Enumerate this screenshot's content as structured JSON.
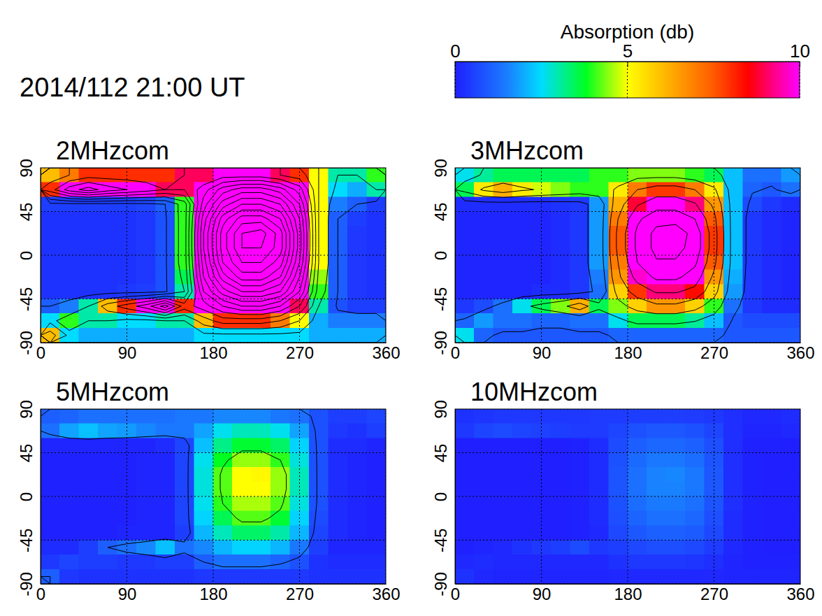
{
  "title": "2014/112 21:00 UT",
  "colorbar": {
    "label": "Absorption (db)",
    "range": [
      0,
      10
    ],
    "ticks": [
      0,
      5,
      10
    ]
  },
  "chart_data": [
    {
      "type": "heatmap",
      "title": "2MHzcom",
      "x": [
        10,
        30,
        50,
        70,
        90,
        110,
        130,
        150,
        170,
        190,
        210,
        230,
        250,
        270,
        290,
        310,
        330,
        350
      ],
      "y": [
        82.5,
        67.5,
        52.5,
        37.5,
        22.5,
        7.5,
        -7.5,
        -22.5,
        -37.5,
        -52.5,
        -67.5,
        -82.5
      ],
      "values": [
        [
          6,
          7,
          8,
          8,
          8,
          8,
          8,
          9,
          9,
          10,
          10,
          10,
          9,
          8,
          5,
          3,
          3,
          4
        ],
        [
          8,
          12,
          14,
          12,
          11,
          10,
          9,
          9,
          12,
          16,
          18,
          18,
          16,
          12,
          5,
          2.5,
          2,
          3
        ],
        [
          0.5,
          0.5,
          0.5,
          0.5,
          0.5,
          0.6,
          1,
          4,
          14,
          20,
          23,
          23,
          21,
          15,
          5,
          1.5,
          1,
          0.5
        ],
        [
          0.3,
          0.3,
          0.3,
          0.3,
          0.3,
          0.4,
          0.8,
          4,
          16,
          24,
          28,
          28,
          25,
          17,
          5,
          1,
          0.5,
          0.3
        ],
        [
          0.3,
          0.3,
          0.3,
          0.3,
          0.3,
          0.4,
          0.8,
          4,
          17,
          26,
          31,
          32,
          28,
          18,
          5,
          1,
          0.4,
          0.3
        ],
        [
          0.3,
          0.3,
          0.3,
          0.3,
          0.3,
          0.4,
          0.8,
          4,
          17,
          26,
          31,
          31,
          28,
          18,
          5,
          1,
          0.4,
          0.3
        ],
        [
          0.3,
          0.3,
          0.3,
          0.3,
          0.3,
          0.4,
          0.8,
          4,
          16,
          25,
          29,
          29,
          26,
          17,
          5,
          1,
          0.4,
          0.3
        ],
        [
          0.3,
          0.3,
          0.3,
          0.3,
          0.3,
          0.4,
          0.8,
          3.5,
          15,
          22,
          26,
          26,
          23,
          15,
          4.5,
          1,
          0.4,
          0.3
        ],
        [
          0.3,
          0.3,
          0.3,
          0.3,
          0.4,
          0.5,
          0.8,
          3,
          13,
          18,
          21,
          21,
          19,
          13,
          4,
          1,
          0.4,
          0.3
        ],
        [
          1,
          1.5,
          3,
          6,
          8,
          10,
          14,
          8,
          10,
          13,
          15,
          15,
          13,
          9,
          3,
          0.8,
          0.5,
          0.5
        ],
        [
          2.5,
          4,
          3,
          3,
          2.5,
          2.5,
          3,
          3,
          6,
          8,
          8,
          8,
          7,
          5,
          2,
          1.5,
          1.5,
          1.5
        ],
        [
          6,
          2.5,
          2,
          2,
          2,
          2,
          2,
          2,
          2.5,
          2.5,
          2.5,
          2.5,
          2.5,
          2.5,
          2,
          2,
          2,
          2
        ]
      ],
      "contours": [
        1,
        3,
        5,
        7,
        9,
        11,
        13,
        15,
        17,
        19,
        21,
        23,
        25,
        27,
        29,
        31
      ],
      "xlim": [
        0,
        360
      ],
      "ylim": [
        -90,
        90
      ],
      "xticks": [
        0,
        90,
        180,
        270,
        360
      ],
      "yticks": [
        -90,
        -45,
        0,
        45,
        90
      ],
      "grid": true
    },
    {
      "type": "heatmap",
      "title": "3MHzcom",
      "x": [
        10,
        30,
        50,
        70,
        90,
        110,
        130,
        150,
        170,
        190,
        210,
        230,
        250,
        270,
        290,
        310,
        330,
        350
      ],
      "y": [
        82.5,
        67.5,
        52.5,
        37.5,
        22.5,
        7.5,
        -7.5,
        -22.5,
        -37.5,
        -52.5,
        -67.5,
        -82.5
      ],
      "values": [
        [
          2.6,
          3.1,
          3.5,
          3.5,
          3.5,
          3.5,
          3.5,
          4,
          4,
          4.4,
          4.4,
          4.4,
          4,
          3.5,
          2.2,
          1.3,
          1.3,
          1.8
        ],
        [
          3.5,
          5.3,
          6.2,
          5.3,
          4.8,
          4.4,
          4,
          4,
          5.3,
          7,
          7.9,
          7.9,
          7,
          5.3,
          2.2,
          1.1,
          0.9,
          1.3
        ],
        [
          0.2,
          0.2,
          0.2,
          0.2,
          0.2,
          0.3,
          0.4,
          1.8,
          6.2,
          8.8,
          10.1,
          10.1,
          9.2,
          6.6,
          2.2,
          0.7,
          0.4,
          0.2
        ],
        [
          0.1,
          0.1,
          0.1,
          0.1,
          0.1,
          0.2,
          0.4,
          1.8,
          7,
          10.6,
          12.3,
          12.3,
          11,
          7.5,
          2.2,
          0.4,
          0.2,
          0.1
        ],
        [
          0.1,
          0.1,
          0.1,
          0.1,
          0.1,
          0.2,
          0.4,
          1.8,
          7.5,
          11.4,
          13.6,
          14.1,
          12.3,
          7.9,
          2.2,
          0.4,
          0.2,
          0.1
        ],
        [
          0.1,
          0.1,
          0.1,
          0.1,
          0.1,
          0.2,
          0.4,
          1.8,
          7.5,
          11.4,
          13.6,
          13.6,
          12.3,
          7.9,
          2.2,
          0.4,
          0.2,
          0.1
        ],
        [
          0.1,
          0.1,
          0.1,
          0.1,
          0.1,
          0.2,
          0.4,
          1.8,
          7,
          11,
          12.8,
          12.8,
          11.4,
          7.5,
          2.2,
          0.4,
          0.2,
          0.1
        ],
        [
          0.1,
          0.1,
          0.1,
          0.1,
          0.1,
          0.2,
          0.4,
          1.5,
          6.6,
          9.7,
          11.4,
          11.4,
          10.1,
          6.6,
          2,
          0.4,
          0.2,
          0.1
        ],
        [
          0.1,
          0.1,
          0.1,
          0.1,
          0.2,
          0.2,
          0.4,
          1.3,
          5.7,
          7.9,
          9.2,
          9.2,
          8.4,
          5.7,
          1.8,
          0.4,
          0.2,
          0.1
        ],
        [
          0.4,
          0.7,
          1.3,
          2.6,
          3.5,
          4.4,
          6.2,
          3.5,
          4.4,
          5.7,
          6.6,
          6.6,
          5.7,
          4,
          1.3,
          0.4,
          0.2,
          0.2
        ],
        [
          1.1,
          1.8,
          1.3,
          1.3,
          1.1,
          1.1,
          1.3,
          1.3,
          2.6,
          3.5,
          3.5,
          3.5,
          3.1,
          2.2,
          0.9,
          0.7,
          0.7,
          0.7
        ],
        [
          2.6,
          1.1,
          0.9,
          0.9,
          0.9,
          0.9,
          0.9,
          0.9,
          1.1,
          1.1,
          1.1,
          1.1,
          1.1,
          1.1,
          0.9,
          0.9,
          0.9,
          0.9
        ]
      ],
      "contours": [
        1,
        3,
        5,
        7,
        9,
        11,
        13
      ],
      "xlim": [
        0,
        360
      ],
      "ylim": [
        -90,
        90
      ],
      "xticks": [
        0,
        90,
        180,
        270,
        360
      ],
      "yticks": [
        -90,
        -45,
        0,
        45,
        90
      ],
      "grid": true
    },
    {
      "type": "heatmap",
      "title": "5MHzcom",
      "x": [
        10,
        30,
        50,
        70,
        90,
        110,
        130,
        150,
        170,
        190,
        210,
        230,
        250,
        270,
        290,
        310,
        330,
        350
      ],
      "y": [
        82.5,
        67.5,
        52.5,
        37.5,
        22.5,
        7.5,
        -7.5,
        -22.5,
        -37.5,
        -52.5,
        -67.5,
        -82.5
      ],
      "values": [
        [
          1,
          1.1,
          1.3,
          1.3,
          1.3,
          1.3,
          1.3,
          1.4,
          1.4,
          1.6,
          1.6,
          1.6,
          1.4,
          1.3,
          0.8,
          0.5,
          0.5,
          0.6
        ],
        [
          1.3,
          1.9,
          2.2,
          1.9,
          1.8,
          1.6,
          1.4,
          1.4,
          1.9,
          2.6,
          2.9,
          2.9,
          2.6,
          1.9,
          0.8,
          0.4,
          0.3,
          0.5
        ],
        [
          0.1,
          0.1,
          0.1,
          0.1,
          0.1,
          0.1,
          0.2,
          0.6,
          2.2,
          3.2,
          3.7,
          3.7,
          3.4,
          2.4,
          0.8,
          0.2,
          0.2,
          0.1
        ],
        [
          0.05,
          0.05,
          0.05,
          0.05,
          0.05,
          0.1,
          0.1,
          0.6,
          2.6,
          3.8,
          4.5,
          4.5,
          4,
          2.7,
          0.8,
          0.2,
          0.1,
          0.05
        ],
        [
          0.05,
          0.05,
          0.05,
          0.05,
          0.05,
          0.1,
          0.1,
          0.6,
          2.7,
          4.2,
          5,
          5.1,
          4.5,
          2.9,
          0.8,
          0.2,
          0.1,
          0.05
        ],
        [
          0.05,
          0.05,
          0.05,
          0.05,
          0.05,
          0.1,
          0.1,
          0.6,
          2.7,
          4.2,
          5,
          5,
          4.5,
          2.9,
          0.8,
          0.2,
          0.1,
          0.05
        ],
        [
          0.05,
          0.05,
          0.05,
          0.05,
          0.05,
          0.1,
          0.1,
          0.6,
          2.6,
          4,
          4.6,
          4.6,
          4.2,
          2.7,
          0.8,
          0.2,
          0.1,
          0.05
        ],
        [
          0.05,
          0.05,
          0.05,
          0.05,
          0.05,
          0.1,
          0.1,
          0.6,
          2.4,
          3.5,
          4.2,
          4.2,
          3.7,
          2.4,
          0.7,
          0.2,
          0.1,
          0.05
        ],
        [
          0.05,
          0.05,
          0.05,
          0.05,
          0.1,
          0.1,
          0.1,
          0.5,
          2.1,
          2.9,
          3.4,
          3.4,
          3,
          2.1,
          0.6,
          0.2,
          0.1,
          0.05
        ],
        [
          0.2,
          0.2,
          0.5,
          1,
          1.3,
          1.6,
          2.2,
          1.3,
          1.6,
          2.1,
          2.4,
          2.4,
          2.1,
          1.4,
          0.5,
          0.1,
          0.1,
          0.1
        ],
        [
          0.4,
          0.6,
          0.5,
          0.5,
          0.4,
          0.4,
          0.5,
          0.5,
          1,
          1.3,
          1.3,
          1.3,
          1.1,
          0.8,
          0.3,
          0.2,
          0.2,
          0.2
        ],
        [
          1,
          0.4,
          0.3,
          0.3,
          0.3,
          0.3,
          0.3,
          0.3,
          0.4,
          0.4,
          0.4,
          0.4,
          0.4,
          0.4,
          0.3,
          0.3,
          0.3,
          0.3
        ]
      ],
      "contours": [
        1,
        4
      ],
      "xlim": [
        0,
        360
      ],
      "ylim": [
        -90,
        90
      ],
      "xticks": [
        0,
        90,
        180,
        270,
        360
      ],
      "yticks": [
        -90,
        -45,
        0,
        45,
        90
      ],
      "grid": true
    },
    {
      "type": "heatmap",
      "title": "10MHzcom",
      "x": [
        10,
        30,
        50,
        70,
        90,
        110,
        130,
        150,
        170,
        190,
        210,
        230,
        250,
        270,
        290,
        310,
        330,
        350
      ],
      "y": [
        82.5,
        67.5,
        52.5,
        37.5,
        22.5,
        7.5,
        -7.5,
        -22.5,
        -37.5,
        -52.5,
        -67.5,
        -82.5
      ],
      "values": [
        [
          0.3,
          0.35,
          0.4,
          0.4,
          0.4,
          0.4,
          0.4,
          0.45,
          0.45,
          0.5,
          0.5,
          0.5,
          0.45,
          0.4,
          0.25,
          0.15,
          0.15,
          0.2
        ],
        [
          0.4,
          0.6,
          0.7,
          0.6,
          0.55,
          0.5,
          0.45,
          0.45,
          0.6,
          0.8,
          0.9,
          0.9,
          0.8,
          0.6,
          0.25,
          0.1,
          0.1,
          0.15
        ],
        [
          0,
          0,
          0,
          0,
          0,
          0,
          0.05,
          0.2,
          0.7,
          1,
          1.15,
          1.15,
          1.05,
          0.75,
          0.25,
          0.05,
          0.05,
          0
        ],
        [
          0,
          0,
          0,
          0,
          0,
          0,
          0.05,
          0.2,
          0.8,
          1.2,
          1.4,
          1.4,
          1.25,
          0.85,
          0.25,
          0.05,
          0,
          0
        ],
        [
          0,
          0,
          0,
          0,
          0,
          0,
          0.05,
          0.2,
          0.85,
          1.3,
          1.55,
          1.6,
          1.4,
          0.9,
          0.25,
          0.05,
          0,
          0
        ],
        [
          0,
          0,
          0,
          0,
          0,
          0,
          0.05,
          0.2,
          0.85,
          1.3,
          1.55,
          1.55,
          1.4,
          0.9,
          0.25,
          0.05,
          0,
          0
        ],
        [
          0,
          0,
          0,
          0,
          0,
          0,
          0.05,
          0.2,
          0.8,
          1.25,
          1.45,
          1.45,
          1.3,
          0.85,
          0.25,
          0.05,
          0,
          0
        ],
        [
          0,
          0,
          0,
          0,
          0,
          0,
          0.05,
          0.2,
          0.75,
          1.1,
          1.3,
          1.3,
          1.15,
          0.75,
          0.2,
          0.05,
          0,
          0
        ],
        [
          0,
          0,
          0,
          0,
          0,
          0,
          0.05,
          0.15,
          0.65,
          0.9,
          1.05,
          1.05,
          0.95,
          0.65,
          0.2,
          0.05,
          0,
          0
        ],
        [
          0.05,
          0.1,
          0.15,
          0.3,
          0.4,
          0.5,
          0.7,
          0.4,
          0.5,
          0.65,
          0.75,
          0.75,
          0.65,
          0.45,
          0.15,
          0.05,
          0,
          0
        ],
        [
          0.15,
          0.2,
          0.15,
          0.15,
          0.15,
          0.15,
          0.15,
          0.15,
          0.3,
          0.4,
          0.4,
          0.4,
          0.35,
          0.25,
          0.1,
          0.05,
          0.05,
          0.05
        ],
        [
          0.3,
          0.15,
          0.1,
          0.1,
          0.1,
          0.1,
          0.1,
          0.1,
          0.15,
          0.15,
          0.15,
          0.15,
          0.15,
          0.15,
          0.1,
          0.1,
          0.1,
          0.1
        ]
      ],
      "xlim": [
        0,
        360
      ],
      "ylim": [
        -90,
        90
      ],
      "xticks": [
        0,
        90,
        180,
        270,
        360
      ],
      "yticks": [
        -90,
        -45,
        0,
        45,
        90
      ],
      "grid": true
    }
  ]
}
